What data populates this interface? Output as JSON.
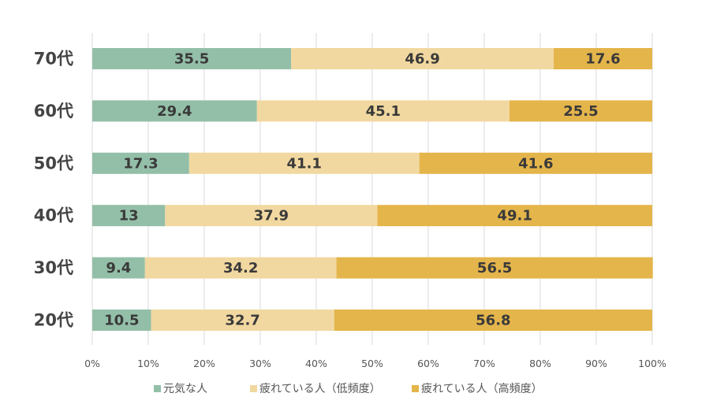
{
  "chart_data": {
    "type": "bar",
    "orientation": "horizontal",
    "stacked": true,
    "categories": [
      "70代",
      "60代",
      "50代",
      "40代",
      "30代",
      "20代"
    ],
    "series": [
      {
        "name": "元気な人",
        "color": "#93bfa8",
        "values": [
          35.5,
          29.4,
          17.3,
          13,
          9.4,
          10.5
        ]
      },
      {
        "name": "疲れている人（低頻度）",
        "color": "#f1d8a0",
        "values": [
          46.9,
          45.1,
          41.1,
          37.9,
          34.2,
          32.7
        ]
      },
      {
        "name": "疲れている人（高頻度）",
        "color": "#e4b54b",
        "values": [
          17.6,
          25.5,
          41.6,
          49.1,
          56.5,
          56.8
        ]
      }
    ],
    "x_ticks": [
      "0%",
      "10%",
      "20%",
      "30%",
      "40%",
      "50%",
      "60%",
      "70%",
      "80%",
      "90%",
      "100%"
    ],
    "xlim": [
      0,
      100
    ],
    "grid": "vertical",
    "legend": "bottom",
    "title": "",
    "xlabel": "",
    "ylabel": ""
  }
}
